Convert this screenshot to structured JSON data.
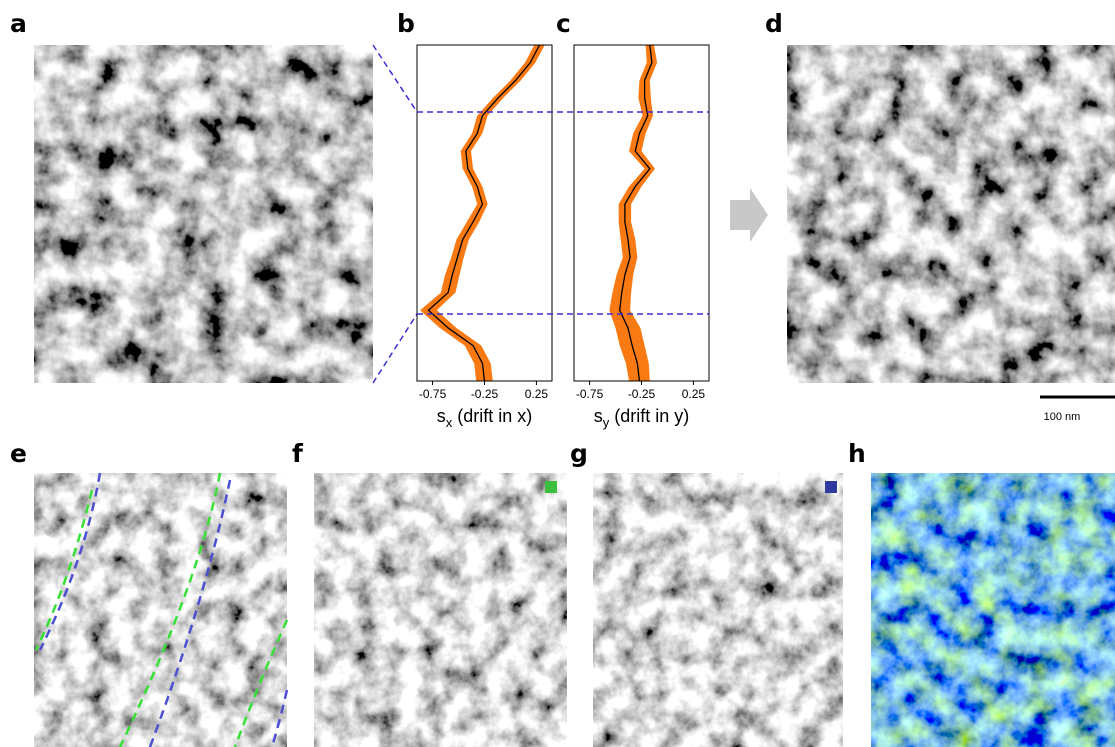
{
  "panel_labels": [
    "a",
    "b",
    "c",
    "d",
    "e",
    "f",
    "g",
    "h"
  ],
  "scale_bar_label": "100 nm",
  "chart_data": [
    {
      "type": "line",
      "x_label": {
        "symbol": "s",
        "subscript": "x",
        "text": "(drift in x)"
      },
      "xlim": [
        -0.9,
        0.4
      ],
      "xticks": [
        -0.75,
        -0.25,
        0.25
      ],
      "color": "#000000",
      "band_color": "#f97a12",
      "values": [
        0.28,
        0.19,
        0.05,
        -0.12,
        -0.27,
        -0.32,
        -0.43,
        -0.41,
        -0.32,
        -0.27,
        -0.36,
        -0.46,
        -0.51,
        -0.56,
        -0.6,
        -0.79,
        -0.6,
        -0.36,
        -0.27,
        -0.25
      ],
      "errors": [
        0.05,
        0.05,
        0.05,
        0.05,
        0.05,
        0.05,
        0.05,
        0.05,
        0.05,
        0.05,
        0.06,
        0.06,
        0.06,
        0.07,
        0.07,
        0.08,
        0.08,
        0.08,
        0.08,
        0.08
      ]
    },
    {
      "type": "line",
      "x_label": {
        "symbol": "s",
        "subscript": "y",
        "text": "(drift in y)"
      },
      "xlim": [
        -0.9,
        0.4
      ],
      "xticks": [
        -0.75,
        -0.25,
        0.25
      ],
      "color": "#000000",
      "band_color": "#f97a12",
      "values": [
        -0.17,
        -0.15,
        -0.22,
        -0.22,
        -0.19,
        -0.27,
        -0.31,
        -0.17,
        -0.31,
        -0.41,
        -0.41,
        -0.38,
        -0.36,
        -0.41,
        -0.44,
        -0.46,
        -0.38,
        -0.34,
        -0.29,
        -0.27
      ],
      "errors": [
        0.04,
        0.05,
        0.05,
        0.06,
        0.05,
        0.06,
        0.06,
        0.05,
        0.06,
        0.06,
        0.06,
        0.07,
        0.07,
        0.08,
        0.09,
        0.1,
        0.12,
        0.12,
        0.11,
        0.1
      ]
    }
  ]
}
